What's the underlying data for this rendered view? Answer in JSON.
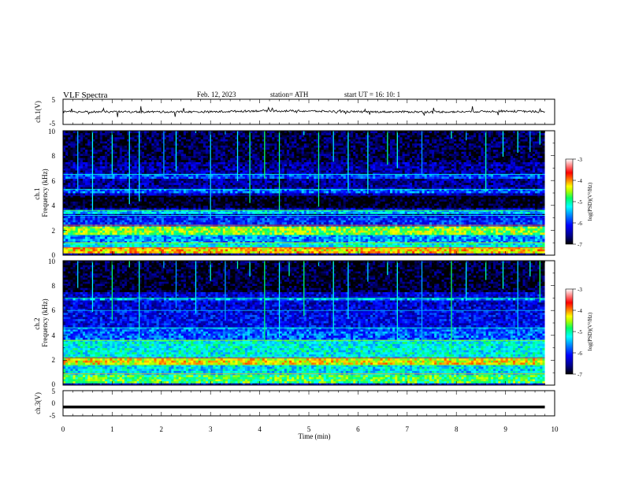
{
  "header": {
    "title": "VLF  Spectra",
    "date": "Feb. 12, 2023",
    "station": "station= ATH",
    "start": "start  UT  =    16: 10: 1"
  },
  "colors": {
    "spectrogram_scale": [
      "#000000",
      "#00008b",
      "#0000ff",
      "#0088ff",
      "#00ffff",
      "#00ff66",
      "#aaff00",
      "#ffff00",
      "#ff8800",
      "#ff0000",
      "#ffffff"
    ],
    "waveform": "#000000"
  },
  "chart_data": [
    {
      "type": "line",
      "panel": "ch1-waveform",
      "ylabel": "ch.1(V)",
      "ylim": [
        -5,
        5
      ],
      "yticks": [
        "5",
        "-5"
      ],
      "x": [
        0,
        1,
        2,
        3,
        4,
        5,
        6,
        7,
        8,
        9,
        9.8
      ],
      "values": [
        0,
        0,
        0,
        0,
        0.4,
        0.3,
        0,
        0,
        0,
        0.3,
        0
      ]
    },
    {
      "type": "heatmap",
      "panel": "ch1-spectrogram",
      "ylabel": "ch.1\nFrequency  (kHz)",
      "ylim": [
        0,
        10
      ],
      "yticks": [
        "0",
        "2",
        "4",
        "6",
        "8",
        "10"
      ],
      "xlim": [
        0,
        10
      ],
      "data_extent_min": 9.8,
      "colorbar": {
        "label": "log(PSD)(V²/Hz)",
        "ticks": [
          "-3",
          "-4",
          "-5",
          "-6",
          "-7"
        ],
        "range": [
          -7,
          -3
        ]
      },
      "background_level": -6.5,
      "bands": [
        {
          "f": [
            0.2,
            0.6
          ],
          "level": -4.2
        },
        {
          "f": [
            0.6,
            1.0
          ],
          "level": -5.2
        },
        {
          "f": [
            1.0,
            1.6
          ],
          "level": -5.6
        },
        {
          "f": [
            1.6,
            2.4
          ],
          "level": -4.6
        },
        {
          "f": [
            2.4,
            3.2
          ],
          "level": -6.0
        },
        {
          "f": [
            3.4,
            3.6
          ],
          "level": -5.4
        },
        {
          "f": [
            3.8,
            4.8
          ],
          "level": -7.0
        },
        {
          "f": [
            5.0,
            5.3
          ],
          "level": -5.8
        },
        {
          "f": [
            6.2,
            6.5
          ],
          "level": -5.9
        },
        {
          "f": [
            7.5,
            10.0
          ],
          "level": -6.8
        }
      ],
      "bursts_t": [
        0.3,
        0.6,
        1.0,
        1.35,
        1.55,
        2.05,
        2.3,
        2.7,
        3.0,
        3.3,
        3.55,
        3.8,
        4.1,
        4.4,
        4.6,
        4.9,
        5.2,
        5.5,
        5.8,
        6.2,
        6.6,
        6.8,
        7.3,
        7.9,
        8.2,
        8.6,
        8.95,
        9.25,
        9.5,
        9.7
      ]
    },
    {
      "type": "heatmap",
      "panel": "ch2-spectrogram",
      "ylabel": "ch.2\nFrequency  (kHz)",
      "ylim": [
        0,
        10
      ],
      "yticks": [
        "0",
        "2",
        "4",
        "6",
        "8",
        "10"
      ],
      "xlim": [
        0,
        10
      ],
      "data_extent_min": 9.8,
      "colorbar": {
        "label": "log(PSD)(V²/Hz)",
        "ticks": [
          "-3",
          "-4",
          "-5",
          "-6",
          "-7"
        ],
        "range": [
          -7,
          -3
        ]
      },
      "background_level": -6.3,
      "bands": [
        {
          "f": [
            0.2,
            0.9
          ],
          "level": -4.8
        },
        {
          "f": [
            0.9,
            1.6
          ],
          "level": -5.3
        },
        {
          "f": [
            1.6,
            2.2
          ],
          "level": -4.3
        },
        {
          "f": [
            2.2,
            3.6
          ],
          "level": -5.2
        },
        {
          "f": [
            3.6,
            4.6
          ],
          "level": -5.8
        },
        {
          "f": [
            4.6,
            6.0
          ],
          "level": -6.2
        },
        {
          "f": [
            6.8,
            7.0
          ],
          "level": -5.6
        },
        {
          "f": [
            7.5,
            10.0
          ],
          "level": -6.9
        }
      ],
      "bursts_t": [
        0.3,
        0.6,
        1.0,
        1.35,
        1.55,
        2.05,
        2.3,
        2.7,
        3.0,
        3.3,
        3.55,
        3.8,
        4.1,
        4.4,
        4.6,
        4.9,
        5.2,
        5.5,
        5.8,
        6.2,
        6.6,
        6.8,
        7.3,
        7.9,
        8.2,
        8.6,
        8.95,
        9.25,
        9.5,
        9.7
      ]
    },
    {
      "type": "line",
      "panel": "ch3-waveform",
      "ylabel": "ch.3(V)",
      "ylim": [
        -5,
        5
      ],
      "yticks": [
        "5",
        "0",
        "-5"
      ],
      "x": [
        0,
        9.8
      ],
      "values": [
        -1.5,
        -1.5
      ],
      "xlabel": "Time  (min)",
      "xlim": [
        0,
        10
      ],
      "xticks": [
        "0",
        "1",
        "2",
        "3",
        "4",
        "5",
        "6",
        "7",
        "8",
        "9",
        "10"
      ]
    }
  ]
}
